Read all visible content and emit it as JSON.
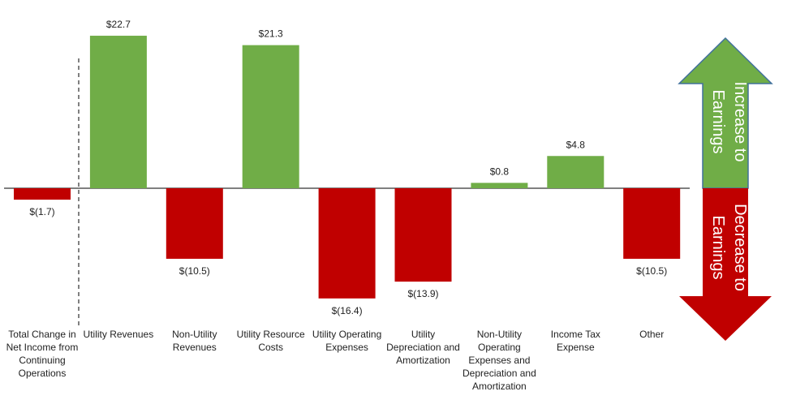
{
  "chart_data": {
    "type": "bar",
    "categories": [
      "Total Change in Net Income from Continuing Operations",
      "Utility Revenues",
      "Non-Utility Revenues",
      "Utility Resource Costs",
      "Utility Operating Expenses",
      "Utility Depreciation and Amortization",
      "Non-Utility Operating Expenses and Depreciation and Amortization",
      "Income Tax Expense",
      "Other"
    ],
    "values": [
      -1.7,
      22.7,
      -10.5,
      21.3,
      -16.4,
      -13.9,
      0.8,
      4.8,
      -10.5
    ],
    "value_labels": [
      "$(1.7)",
      "$22.7",
      "$(10.5)",
      "$21.3",
      "$(16.4)",
      "$(13.9)",
      "$0.8",
      "$4.8",
      "$(10.5)"
    ],
    "positive_color": "#70ad47",
    "negative_color": "#c00000",
    "ylim": [
      -20,
      25
    ],
    "annotations": [
      [
        "Increase to",
        "Earnings"
      ],
      [
        "Decrease to",
        "Earnings"
      ]
    ]
  }
}
